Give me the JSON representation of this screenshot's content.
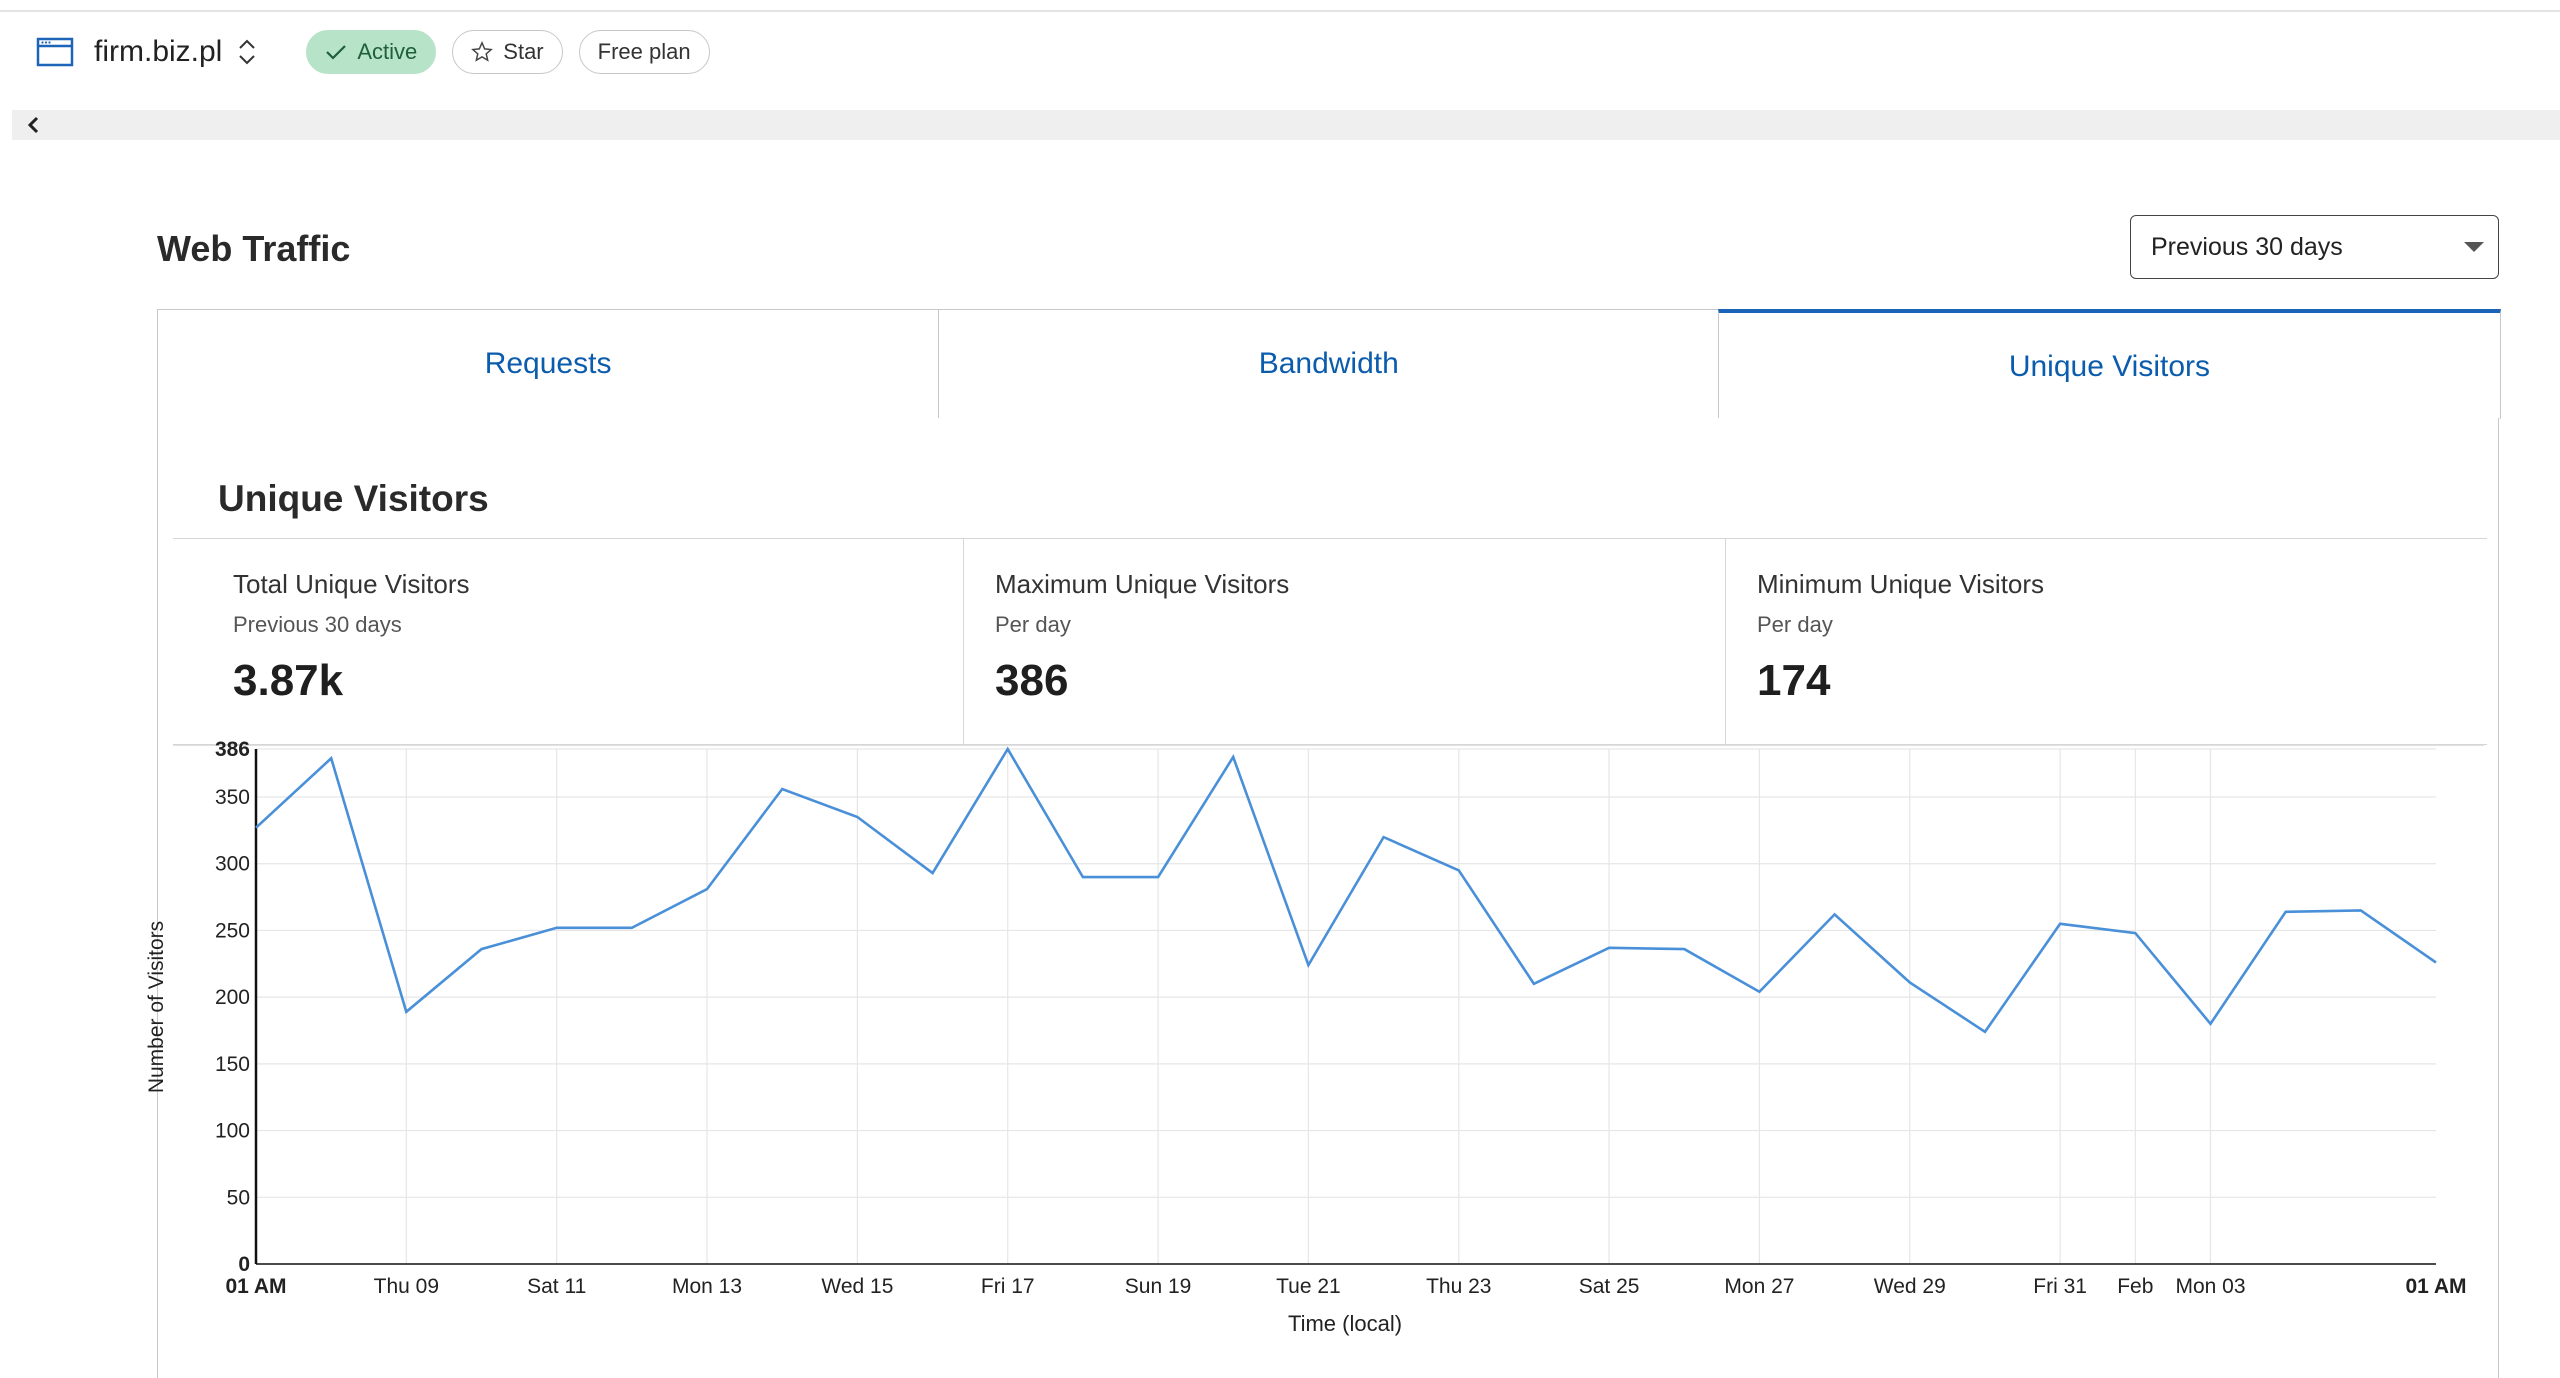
{
  "header": {
    "site_name": "firm.biz.pl",
    "status_badge": "Active",
    "star_label": "Star",
    "plan_badge": "Free plan",
    "site_icon": "browser-window-icon",
    "switch_icon": "up-down-chevron-icon",
    "collapse_icon": "chevron-left-icon",
    "accent": "#1b64b8",
    "active_badge_bg": "#b7e3c8"
  },
  "page": {
    "title": "Web Traffic",
    "range_selected": "Previous 30 days"
  },
  "tabs": [
    {
      "label": "Requests",
      "active": false
    },
    {
      "label": "Bandwidth",
      "active": false
    },
    {
      "label": "Unique Visitors",
      "active": true
    }
  ],
  "panel": {
    "title": "Unique Visitors",
    "stats": [
      {
        "label": "Total Unique Visitors",
        "sub": "Previous 30 days",
        "value": "3.87k"
      },
      {
        "label": "Maximum Unique Visitors",
        "sub": "Per day",
        "value": "386"
      },
      {
        "label": "Minimum Unique Visitors",
        "sub": "Per day",
        "value": "174"
      }
    ]
  },
  "chart_data": {
    "type": "line",
    "xlabel": "Time (local)",
    "ylabel": "Number of Visitors",
    "ylim": [
      0,
      386
    ],
    "yticks": [
      0,
      50,
      100,
      150,
      200,
      250,
      300,
      350,
      386
    ],
    "xtick_labels": [
      "01 AM",
      "Thu 09",
      "Sat 11",
      "Mon 13",
      "Wed 15",
      "Fri 17",
      "Sun 19",
      "Tue 21",
      "Thu 23",
      "Sat 25",
      "Mon 27",
      "Wed 29",
      "Fri 31",
      "Feb",
      "Mon 03",
      "01 AM"
    ],
    "grid": true,
    "line_color": "#4a90d9",
    "series": [
      {
        "values": [
          327,
          379,
          189,
          236,
          252,
          252,
          281,
          356,
          335,
          293,
          386,
          290,
          290,
          380,
          224,
          320,
          295,
          210,
          237,
          236,
          204,
          262,
          211,
          174,
          255,
          248,
          180,
          264,
          265,
          226
        ]
      }
    ]
  }
}
